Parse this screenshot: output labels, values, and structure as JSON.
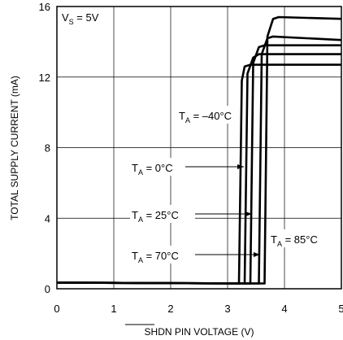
{
  "chart_data": {
    "type": "line",
    "xlabel_overline": "SHDN",
    "xlabel_rest": " PIN VOLTAGE (V)",
    "ylabel": "TOTAL SUPPLY CURRENT (mA)",
    "xlim": [
      0,
      5
    ],
    "ylim": [
      0,
      16
    ],
    "xticks": [
      "0",
      "1",
      "2",
      "3",
      "4",
      "5"
    ],
    "yticks": [
      "0",
      "4",
      "8",
      "12",
      "16"
    ],
    "grid": true,
    "condition": {
      "main": "V",
      "sub": "S",
      "rest": " = 5V"
    },
    "line_color": "#000000",
    "series": [
      {
        "label_main": "T",
        "label_sub": "A",
        "label_rest": " = –40°C",
        "x": [
          0,
          3.0,
          3.2,
          3.25,
          3.3,
          3.4,
          5
        ],
        "y": [
          0.35,
          0.3,
          0.3,
          11.8,
          12.6,
          12.7,
          12.7
        ]
      },
      {
        "label_main": "T",
        "label_sub": "A",
        "label_rest": " = 0°C",
        "x": [
          0,
          3.1,
          3.3,
          3.35,
          3.45,
          3.55,
          5
        ],
        "y": [
          0.35,
          0.3,
          0.3,
          12.2,
          13.1,
          13.3,
          13.3
        ]
      },
      {
        "label_main": "T",
        "label_sub": "A",
        "label_rest": " = 25°C",
        "x": [
          0,
          3.2,
          3.4,
          3.45,
          3.55,
          3.65,
          5
        ],
        "y": [
          0.35,
          0.3,
          0.3,
          12.8,
          13.7,
          13.8,
          13.8
        ]
      },
      {
        "label_main": "T",
        "label_sub": "A",
        "label_rest": " = 70°C",
        "x": [
          0,
          3.3,
          3.55,
          3.6,
          3.7,
          3.8,
          5
        ],
        "y": [
          0.35,
          0.3,
          0.3,
          13.3,
          14.2,
          14.3,
          14.1
        ]
      },
      {
        "label_main": "T",
        "label_sub": "A",
        "label_rest": " = 85°C",
        "x": [
          0,
          3.4,
          3.65,
          3.7,
          3.8,
          3.9,
          5
        ],
        "y": [
          0.35,
          0.3,
          0.3,
          14.3,
          15.3,
          15.4,
          15.3
        ]
      }
    ]
  }
}
